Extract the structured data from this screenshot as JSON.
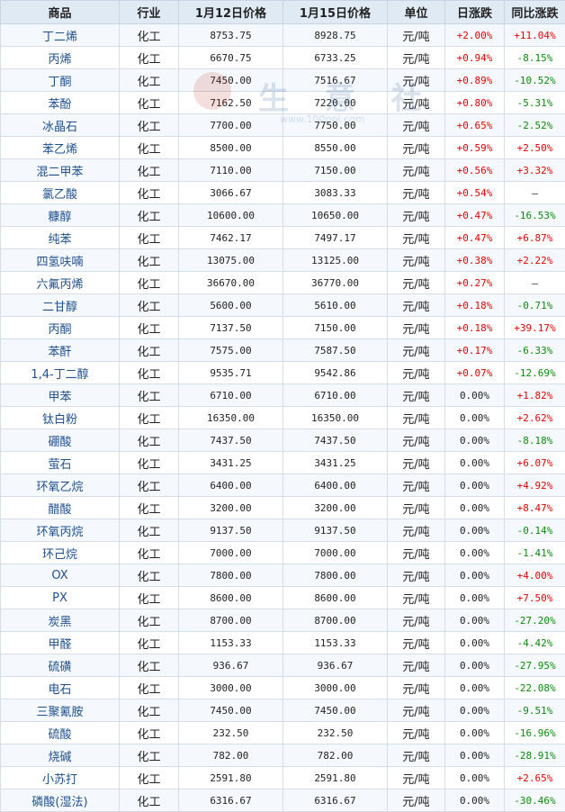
{
  "headers": [
    "商品",
    "行业",
    "1月12日价格",
    "1月15日价格",
    "单位",
    "日涨跌",
    "同比涨跌"
  ],
  "watermark": {
    "text": "生 意 社",
    "url": "www.100ppi.com"
  },
  "rows": [
    {
      "name": "丁二烯",
      "industry": "化工",
      "p1": "8753.75",
      "p2": "8928.75",
      "unit": "元/吨",
      "day": "+2.00%",
      "yoy": "+11.04%"
    },
    {
      "name": "丙烯",
      "industry": "化工",
      "p1": "6670.75",
      "p2": "6733.25",
      "unit": "元/吨",
      "day": "+0.94%",
      "yoy": "-8.15%"
    },
    {
      "name": "丁酮",
      "industry": "化工",
      "p1": "7450.00",
      "p2": "7516.67",
      "unit": "元/吨",
      "day": "+0.89%",
      "yoy": "-10.52%"
    },
    {
      "name": "苯酚",
      "industry": "化工",
      "p1": "7162.50",
      "p2": "7220.00",
      "unit": "元/吨",
      "day": "+0.80%",
      "yoy": "-5.31%"
    },
    {
      "name": "冰晶石",
      "industry": "化工",
      "p1": "7700.00",
      "p2": "7750.00",
      "unit": "元/吨",
      "day": "+0.65%",
      "yoy": "-2.52%"
    },
    {
      "name": "苯乙烯",
      "industry": "化工",
      "p1": "8500.00",
      "p2": "8550.00",
      "unit": "元/吨",
      "day": "+0.59%",
      "yoy": "+2.50%"
    },
    {
      "name": "混二甲苯",
      "industry": "化工",
      "p1": "7110.00",
      "p2": "7150.00",
      "unit": "元/吨",
      "day": "+0.56%",
      "yoy": "+3.32%"
    },
    {
      "name": "氯乙酸",
      "industry": "化工",
      "p1": "3066.67",
      "p2": "3083.33",
      "unit": "元/吨",
      "day": "+0.54%",
      "yoy": "—"
    },
    {
      "name": "糠醇",
      "industry": "化工",
      "p1": "10600.00",
      "p2": "10650.00",
      "unit": "元/吨",
      "day": "+0.47%",
      "yoy": "-16.53%"
    },
    {
      "name": "纯苯",
      "industry": "化工",
      "p1": "7462.17",
      "p2": "7497.17",
      "unit": "元/吨",
      "day": "+0.47%",
      "yoy": "+6.87%"
    },
    {
      "name": "四氢呋喃",
      "industry": "化工",
      "p1": "13075.00",
      "p2": "13125.00",
      "unit": "元/吨",
      "day": "+0.38%",
      "yoy": "+2.22%"
    },
    {
      "name": "六氟丙烯",
      "industry": "化工",
      "p1": "36670.00",
      "p2": "36770.00",
      "unit": "元/吨",
      "day": "+0.27%",
      "yoy": "—"
    },
    {
      "name": "二甘醇",
      "industry": "化工",
      "p1": "5600.00",
      "p2": "5610.00",
      "unit": "元/吨",
      "day": "+0.18%",
      "yoy": "-0.71%"
    },
    {
      "name": "丙酮",
      "industry": "化工",
      "p1": "7137.50",
      "p2": "7150.00",
      "unit": "元/吨",
      "day": "+0.18%",
      "yoy": "+39.17%"
    },
    {
      "name": "苯酐",
      "industry": "化工",
      "p1": "7575.00",
      "p2": "7587.50",
      "unit": "元/吨",
      "day": "+0.17%",
      "yoy": "-6.33%"
    },
    {
      "name": "1,4-丁二醇",
      "industry": "化工",
      "p1": "9535.71",
      "p2": "9542.86",
      "unit": "元/吨",
      "day": "+0.07%",
      "yoy": "-12.69%"
    },
    {
      "name": "甲苯",
      "industry": "化工",
      "p1": "6710.00",
      "p2": "6710.00",
      "unit": "元/吨",
      "day": "0.00%",
      "yoy": "+1.82%"
    },
    {
      "name": "钛白粉",
      "industry": "化工",
      "p1": "16350.00",
      "p2": "16350.00",
      "unit": "元/吨",
      "day": "0.00%",
      "yoy": "+2.62%"
    },
    {
      "name": "硼酸",
      "industry": "化工",
      "p1": "7437.50",
      "p2": "7437.50",
      "unit": "元/吨",
      "day": "0.00%",
      "yoy": "-8.18%"
    },
    {
      "name": "萤石",
      "industry": "化工",
      "p1": "3431.25",
      "p2": "3431.25",
      "unit": "元/吨",
      "day": "0.00%",
      "yoy": "+6.07%"
    },
    {
      "name": "环氧乙烷",
      "industry": "化工",
      "p1": "6400.00",
      "p2": "6400.00",
      "unit": "元/吨",
      "day": "0.00%",
      "yoy": "+4.92%"
    },
    {
      "name": "醋酸",
      "industry": "化工",
      "p1": "3200.00",
      "p2": "3200.00",
      "unit": "元/吨",
      "day": "0.00%",
      "yoy": "+8.47%"
    },
    {
      "name": "环氧丙烷",
      "industry": "化工",
      "p1": "9137.50",
      "p2": "9137.50",
      "unit": "元/吨",
      "day": "0.00%",
      "yoy": "-0.14%"
    },
    {
      "name": "环己烷",
      "industry": "化工",
      "p1": "7000.00",
      "p2": "7000.00",
      "unit": "元/吨",
      "day": "0.00%",
      "yoy": "-1.41%"
    },
    {
      "name": "OX",
      "industry": "化工",
      "p1": "7800.00",
      "p2": "7800.00",
      "unit": "元/吨",
      "day": "0.00%",
      "yoy": "+4.00%"
    },
    {
      "name": "PX",
      "industry": "化工",
      "p1": "8600.00",
      "p2": "8600.00",
      "unit": "元/吨",
      "day": "0.00%",
      "yoy": "+7.50%"
    },
    {
      "name": "炭黑",
      "industry": "化工",
      "p1": "8700.00",
      "p2": "8700.00",
      "unit": "元/吨",
      "day": "0.00%",
      "yoy": "-27.20%"
    },
    {
      "name": "甲醛",
      "industry": "化工",
      "p1": "1153.33",
      "p2": "1153.33",
      "unit": "元/吨",
      "day": "0.00%",
      "yoy": "-4.42%"
    },
    {
      "name": "硫磺",
      "industry": "化工",
      "p1": "936.67",
      "p2": "936.67",
      "unit": "元/吨",
      "day": "0.00%",
      "yoy": "-27.95%"
    },
    {
      "name": "电石",
      "industry": "化工",
      "p1": "3000.00",
      "p2": "3000.00",
      "unit": "元/吨",
      "day": "0.00%",
      "yoy": "-22.08%"
    },
    {
      "name": "三聚氰胺",
      "industry": "化工",
      "p1": "7450.00",
      "p2": "7450.00",
      "unit": "元/吨",
      "day": "0.00%",
      "yoy": "-9.51%"
    },
    {
      "name": "硫酸",
      "industry": "化工",
      "p1": "232.50",
      "p2": "232.50",
      "unit": "元/吨",
      "day": "0.00%",
      "yoy": "-16.96%"
    },
    {
      "name": "烧碱",
      "industry": "化工",
      "p1": "782.00",
      "p2": "782.00",
      "unit": "元/吨",
      "day": "0.00%",
      "yoy": "-28.91%"
    },
    {
      "name": "小苏打",
      "industry": "化工",
      "p1": "2591.80",
      "p2": "2591.80",
      "unit": "元/吨",
      "day": "0.00%",
      "yoy": "+2.65%"
    },
    {
      "name": "磷酸(湿法)",
      "industry": "化工",
      "p1": "6316.67",
      "p2": "6316.67",
      "unit": "元/吨",
      "day": "0.00%",
      "yoy": "-30.46%"
    }
  ]
}
